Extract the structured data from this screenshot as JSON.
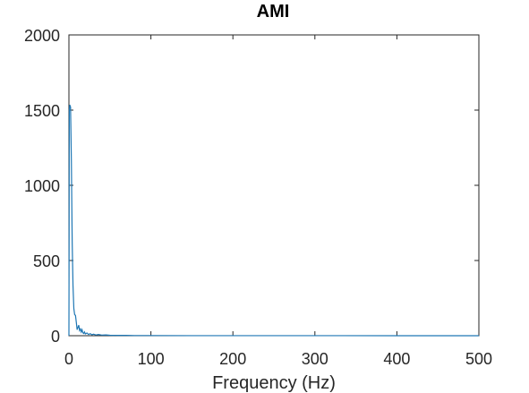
{
  "chart_data": {
    "type": "line",
    "title": "AMI",
    "xlabel": "Frequency (Hz)",
    "ylabel": "",
    "xlim": [
      0,
      500
    ],
    "ylim": [
      0,
      2000
    ],
    "xticks": [
      0,
      100,
      200,
      300,
      400,
      500
    ],
    "yticks": [
      0,
      500,
      1000,
      1500,
      2000
    ],
    "xtick_labels": [
      "0",
      "100",
      "200",
      "300",
      "400",
      "500"
    ],
    "ytick_labels": [
      "0",
      "500",
      "1000",
      "1500",
      "2000"
    ],
    "grid": false,
    "line_color": "#1f77b4",
    "axis_color": "#262626",
    "series": [
      {
        "x": [
          0,
          0.5,
          1,
          2,
          3,
          4,
          5,
          6,
          7,
          8,
          9,
          10,
          11,
          12,
          13,
          14,
          15,
          16,
          17,
          18,
          19,
          20,
          22,
          24,
          26,
          28,
          30,
          33,
          36,
          40,
          45,
          50,
          60,
          70,
          80,
          100,
          150,
          200,
          300,
          400,
          500
        ],
        "y": [
          0,
          1500,
          1535,
          1520,
          1150,
          620,
          330,
          180,
          140,
          135,
          90,
          40,
          55,
          70,
          35,
          45,
          25,
          40,
          20,
          15,
          25,
          12,
          18,
          8,
          14,
          6,
          10,
          5,
          8,
          4,
          5,
          3,
          2,
          2,
          1,
          1,
          0.5,
          0.5,
          0.3,
          0.2,
          0.1
        ]
      }
    ]
  }
}
